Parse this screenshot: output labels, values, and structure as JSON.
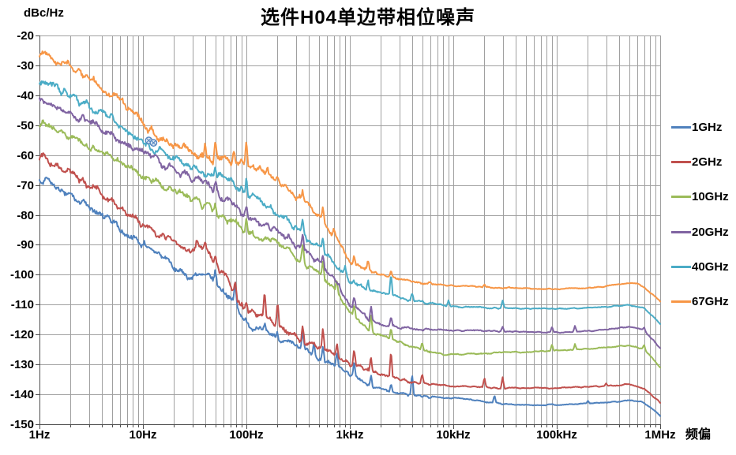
{
  "title": "选件H04单边带相位噪声",
  "y_axis": {
    "label": "dBc/Hz",
    "min": -150,
    "max": -20,
    "ticks": [
      "-20",
      "-30",
      "-40",
      "-50",
      "-60",
      "-70",
      "-80",
      "-90",
      "-100",
      "-110",
      "-120",
      "-130",
      "-140",
      "-150"
    ],
    "tick_values": [
      -20,
      -30,
      -40,
      -50,
      -60,
      -70,
      -80,
      -90,
      -100,
      -110,
      -120,
      -130,
      -140,
      -150
    ]
  },
  "x_axis": {
    "label": "频偏",
    "scale": "log",
    "ticks": [
      "1Hz",
      "10Hz",
      "100Hz",
      "1kHz",
      "10kHz",
      "100kHz",
      "1MHz"
    ],
    "tick_freqs_hz": [
      1,
      10,
      100,
      1000,
      10000,
      100000,
      1000000
    ]
  },
  "legend": [
    {
      "label": "1GHz",
      "color": "#4F81BD"
    },
    {
      "label": "2GHz",
      "color": "#C0504D"
    },
    {
      "label": "10GHz",
      "color": "#9BBB59"
    },
    {
      "label": "20GHz",
      "color": "#8064A2"
    },
    {
      "label": "40GHz",
      "color": "#4BACC6"
    },
    {
      "label": "67GHz",
      "color": "#F79646"
    }
  ],
  "colors": {
    "grid": "#a0a0a0",
    "axis": "#4d4d4d",
    "background": "#ffffff"
  },
  "chart_data": {
    "type": "line",
    "title": "选件H04单边带相位噪声",
    "xlabel": "频偏",
    "ylabel": "dBc/Hz",
    "x_scale": "log",
    "x_range_hz": [
      1,
      1000000
    ],
    "ylim": [
      -150,
      -20
    ],
    "grid": true,
    "legend_position": "right",
    "series": [
      {
        "name": "1GHz",
        "color": "#4F81BD",
        "anchors": [
          [
            1,
            -67.5
          ],
          [
            1.5,
            -71
          ],
          [
            2,
            -73.5
          ],
          [
            3,
            -77
          ],
          [
            5,
            -82
          ],
          [
            7,
            -86
          ],
          [
            10,
            -90
          ],
          [
            15,
            -94.5
          ],
          [
            20,
            -97
          ],
          [
            25,
            -99
          ],
          [
            30,
            -100.5
          ],
          [
            35,
            -99.8
          ],
          [
            40,
            -100
          ],
          [
            50,
            -103
          ],
          [
            60,
            -105
          ],
          [
            70,
            -107
          ],
          [
            80,
            -110
          ],
          [
            100,
            -116
          ],
          [
            130,
            -118.5
          ],
          [
            150,
            -119.5
          ],
          [
            200,
            -121.5
          ],
          [
            300,
            -124.5
          ],
          [
            400,
            -126.3
          ],
          [
            500,
            -127.8
          ],
          [
            700,
            -130.3
          ],
          [
            1000,
            -133.5
          ],
          [
            1500,
            -136.5
          ],
          [
            2000,
            -138.3
          ],
          [
            3000,
            -139.8
          ],
          [
            5000,
            -140.8
          ],
          [
            10000,
            -141.2
          ],
          [
            20000,
            -142.5
          ],
          [
            30000,
            -143.2
          ],
          [
            50000,
            -143.5
          ],
          [
            100000,
            -143.5
          ],
          [
            200000,
            -143.1
          ],
          [
            300000,
            -142.7
          ],
          [
            500000,
            -142.1
          ],
          [
            650000,
            -142.4
          ],
          [
            800000,
            -144.2
          ],
          [
            1000000,
            -147.2
          ]
        ],
        "spurs": [
          [
            50,
            4
          ],
          [
            78,
            6
          ],
          [
            150,
            3
          ],
          [
            200,
            3
          ],
          [
            350,
            6
          ],
          [
            450,
            4
          ],
          [
            550,
            5
          ],
          [
            750,
            5
          ],
          [
            1100,
            5
          ],
          [
            1600,
            4
          ],
          [
            2500,
            3
          ],
          [
            4000,
            7
          ],
          [
            25000,
            2.5
          ],
          [
            200000,
            0.8
          ]
        ]
      },
      {
        "name": "2GHz",
        "color": "#C0504D",
        "anchors": [
          [
            1,
            -60
          ],
          [
            1.5,
            -63.5
          ],
          [
            2,
            -66
          ],
          [
            3,
            -70
          ],
          [
            5,
            -75.5
          ],
          [
            7,
            -79.5
          ],
          [
            10,
            -83.5
          ],
          [
            15,
            -87
          ],
          [
            20,
            -89
          ],
          [
            25,
            -91
          ],
          [
            30,
            -92
          ],
          [
            35,
            -91.5
          ],
          [
            40,
            -90.5
          ],
          [
            45,
            -93
          ],
          [
            50,
            -96.5
          ],
          [
            55,
            -99
          ],
          [
            60,
            -98
          ],
          [
            70,
            -103
          ],
          [
            80,
            -107
          ],
          [
            100,
            -112
          ],
          [
            130,
            -113.5
          ],
          [
            150,
            -114
          ],
          [
            200,
            -117
          ],
          [
            300,
            -120.5
          ],
          [
            400,
            -122.5
          ],
          [
            500,
            -124
          ],
          [
            700,
            -126.5
          ],
          [
            1000,
            -129.5
          ],
          [
            1500,
            -132
          ],
          [
            2000,
            -133.5
          ],
          [
            3000,
            -135
          ],
          [
            5000,
            -136.3
          ],
          [
            10000,
            -137.3
          ],
          [
            30000,
            -137.9
          ],
          [
            100000,
            -137.9
          ],
          [
            200000,
            -137.5
          ],
          [
            300000,
            -137.2
          ],
          [
            500000,
            -136.6
          ],
          [
            700000,
            -138
          ],
          [
            1000000,
            -142.8
          ]
        ],
        "spurs": [
          [
            33,
            2
          ],
          [
            40,
            2.5
          ],
          [
            50,
            3
          ],
          [
            78,
            5
          ],
          [
            100,
            4
          ],
          [
            150,
            8
          ],
          [
            200,
            7
          ],
          [
            350,
            6
          ],
          [
            550,
            7
          ],
          [
            750,
            5
          ],
          [
            1100,
            6
          ],
          [
            1600,
            5
          ],
          [
            2500,
            9
          ],
          [
            5000,
            3
          ],
          [
            20000,
            3
          ],
          [
            30000,
            4
          ],
          [
            300000,
            1
          ]
        ]
      },
      {
        "name": "10GHz",
        "color": "#9BBB59",
        "anchors": [
          [
            1,
            -49.5
          ],
          [
            2,
            -54
          ],
          [
            3,
            -57
          ],
          [
            5,
            -61
          ],
          [
            10,
            -66.5
          ],
          [
            15,
            -69.5
          ],
          [
            20,
            -71.5
          ],
          [
            30,
            -74.5
          ],
          [
            50,
            -78.5
          ],
          [
            70,
            -82
          ],
          [
            100,
            -85.4
          ],
          [
            150,
            -87.8
          ],
          [
            200,
            -89.4
          ],
          [
            300,
            -94.4
          ],
          [
            400,
            -97.5
          ],
          [
            500,
            -99.7
          ],
          [
            700,
            -104.5
          ],
          [
            1000,
            -112
          ],
          [
            1500,
            -118.5
          ],
          [
            2000,
            -120.5
          ],
          [
            3000,
            -122.5
          ],
          [
            5000,
            -124.8
          ],
          [
            8000,
            -126.8
          ],
          [
            10000,
            -126.7
          ],
          [
            20000,
            -126.3
          ],
          [
            50000,
            -125.8
          ],
          [
            100000,
            -125.4
          ],
          [
            200000,
            -124.8
          ],
          [
            300000,
            -124.3
          ],
          [
            500000,
            -123.6
          ],
          [
            700000,
            -124.9
          ],
          [
            1000000,
            -131
          ]
        ],
        "spurs": [
          [
            50,
            3.5
          ],
          [
            100,
            5
          ],
          [
            350,
            6
          ],
          [
            550,
            6
          ],
          [
            750,
            4
          ],
          [
            1100,
            4
          ],
          [
            1600,
            6
          ],
          [
            2500,
            4
          ],
          [
            5000,
            2.5
          ],
          [
            90000,
            2.2
          ],
          [
            150000,
            2
          ],
          [
            700000,
            1.5
          ]
        ]
      },
      {
        "name": "20GHz",
        "color": "#8064A2",
        "anchors": [
          [
            1,
            -41
          ],
          [
            2,
            -46
          ],
          [
            3,
            -49
          ],
          [
            5,
            -53.5
          ],
          [
            10,
            -59.5
          ],
          [
            15,
            -62.5
          ],
          [
            20,
            -64.5
          ],
          [
            30,
            -67.5
          ],
          [
            50,
            -72
          ],
          [
            70,
            -76
          ],
          [
            100,
            -80
          ],
          [
            150,
            -83.5
          ],
          [
            200,
            -85.4
          ],
          [
            300,
            -89.9
          ],
          [
            400,
            -93.2
          ],
          [
            500,
            -95.7
          ],
          [
            700,
            -101
          ],
          [
            1000,
            -110
          ],
          [
            1500,
            -114.5
          ],
          [
            2000,
            -116.5
          ],
          [
            3000,
            -117.8
          ],
          [
            5000,
            -118.2
          ],
          [
            10000,
            -118.6
          ],
          [
            30000,
            -118.9
          ],
          [
            100000,
            -119.3
          ],
          [
            200000,
            -118.9
          ],
          [
            300000,
            -118.3
          ],
          [
            500000,
            -117.4
          ],
          [
            700000,
            -118.6
          ],
          [
            1000000,
            -124.5
          ]
        ],
        "spurs": [
          [
            50,
            2.5
          ],
          [
            100,
            3.5
          ],
          [
            350,
            5
          ],
          [
            550,
            4
          ],
          [
            1100,
            4
          ],
          [
            1600,
            5
          ],
          [
            2500,
            3
          ],
          [
            30000,
            1.5
          ],
          [
            90000,
            2
          ],
          [
            150000,
            2
          ],
          [
            700000,
            1
          ]
        ]
      },
      {
        "name": "40GHz",
        "color": "#4BACC6",
        "anchors": [
          [
            1,
            -35
          ],
          [
            2,
            -40
          ],
          [
            3,
            -43.5
          ],
          [
            5,
            -47.5
          ],
          [
            7,
            -51
          ],
          [
            10,
            -55
          ],
          [
            12,
            -58
          ],
          [
            15,
            -59
          ],
          [
            20,
            -61
          ],
          [
            30,
            -64
          ],
          [
            40,
            -66.5
          ],
          [
            50,
            -66
          ],
          [
            60,
            -67.5
          ],
          [
            80,
            -70
          ],
          [
            100,
            -72.5
          ],
          [
            130,
            -75
          ],
          [
            150,
            -76
          ],
          [
            200,
            -79.4
          ],
          [
            300,
            -84.6
          ],
          [
            400,
            -88
          ],
          [
            500,
            -90.7
          ],
          [
            700,
            -96
          ],
          [
            1000,
            -102.3
          ],
          [
            1500,
            -104.8
          ],
          [
            2000,
            -106
          ],
          [
            3000,
            -107.6
          ],
          [
            5000,
            -109.3
          ],
          [
            10000,
            -110.6
          ],
          [
            30000,
            -111.2
          ],
          [
            100000,
            -111.4
          ],
          [
            200000,
            -111.1
          ],
          [
            300000,
            -110.7
          ],
          [
            500000,
            -110.1
          ],
          [
            700000,
            -111.2
          ],
          [
            1000000,
            -116.4
          ]
        ],
        "spurs": [
          [
            50,
            3
          ],
          [
            100,
            6
          ],
          [
            350,
            4
          ],
          [
            550,
            5
          ],
          [
            900,
            3
          ],
          [
            1500,
            4
          ],
          [
            2500,
            7
          ],
          [
            4000,
            2.5
          ],
          [
            9000,
            2
          ],
          [
            30000,
            2.5
          ]
        ]
      },
      {
        "name": "67GHz",
        "color": "#F79646",
        "anchors": [
          [
            1,
            -26.5
          ],
          [
            1.5,
            -28.5
          ],
          [
            2,
            -30.5
          ],
          [
            3,
            -34
          ],
          [
            5,
            -39.5
          ],
          [
            7,
            -44
          ],
          [
            10,
            -49.5
          ],
          [
            13,
            -53
          ],
          [
            15,
            -54.5
          ],
          [
            20,
            -56.5
          ],
          [
            25,
            -58
          ],
          [
            30,
            -59.5
          ],
          [
            40,
            -61
          ],
          [
            50,
            -61.5
          ],
          [
            60,
            -62
          ],
          [
            80,
            -62.8
          ],
          [
            100,
            -63.3
          ],
          [
            130,
            -64.5
          ],
          [
            150,
            -65.5
          ],
          [
            200,
            -68
          ],
          [
            300,
            -73.3
          ],
          [
            400,
            -77
          ],
          [
            500,
            -80.3
          ],
          [
            700,
            -87
          ],
          [
            1000,
            -95.2
          ],
          [
            1300,
            -97.5
          ],
          [
            1500,
            -98.3
          ],
          [
            2000,
            -99.8
          ],
          [
            3000,
            -101.3
          ],
          [
            5000,
            -102.7
          ],
          [
            10000,
            -103.7
          ],
          [
            30000,
            -104.3
          ],
          [
            100000,
            -104.8
          ],
          [
            200000,
            -104.4
          ],
          [
            300000,
            -103.9
          ],
          [
            400000,
            -103.2
          ],
          [
            500000,
            -102.7
          ],
          [
            600000,
            -103
          ],
          [
            700000,
            -104.2
          ],
          [
            1000000,
            -108.8
          ]
        ],
        "spurs": [
          [
            40,
            6
          ],
          [
            50,
            6
          ],
          [
            75,
            4
          ],
          [
            100,
            9
          ],
          [
            160,
            3
          ],
          [
            350,
            4
          ],
          [
            550,
            5
          ],
          [
            700,
            3
          ],
          [
            1100,
            3
          ],
          [
            1500,
            2.5
          ],
          [
            2500,
            2
          ],
          [
            20000,
            1
          ]
        ]
      }
    ],
    "annotation": {
      "type": "marker-cluster",
      "x_hz": 12,
      "y_db": -55.5,
      "color": "#4F81BD",
      "fill": "#dbe5f1"
    }
  }
}
